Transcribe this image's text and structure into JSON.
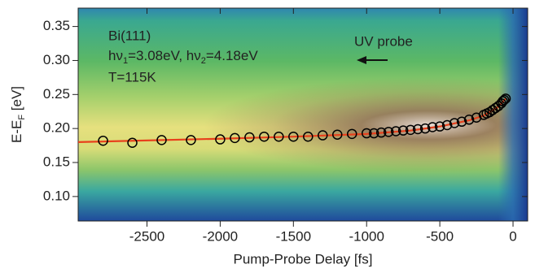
{
  "chart_data": {
    "type": "scatter",
    "xlabel": "Pump-Probe Delay [fs]",
    "ylabel": [
      "E-E",
      "F",
      " [eV]"
    ],
    "annotations": {
      "sample": "Bi(111)",
      "photons": [
        "hν",
        "1",
        "=3.08eV, hν",
        "2",
        "=4.18eV"
      ],
      "temperature": "T=115K",
      "probe": "UV probe"
    },
    "xlim": [
      -2970,
      100
    ],
    "ylim": [
      0.064,
      0.377
    ],
    "xticks": [
      -2500,
      -2000,
      -1500,
      -1000,
      -500,
      0
    ],
    "yticks": [
      {
        "value": 0.1,
        "label": "0.10"
      },
      0.15,
      {
        "value": 0.2,
        "label": "0.20"
      },
      0.25,
      {
        "value": 0.3,
        "label": "0.30"
      },
      0.35
    ],
    "series": [
      {
        "kind": "markers",
        "color": "#000000",
        "x": [
          -2800,
          -2600,
          -2400,
          -2200,
          -2000,
          -1900,
          -1800,
          -1700,
          -1600,
          -1500,
          -1400,
          -1300,
          -1200,
          -1100,
          -1000,
          -950,
          -900,
          -850,
          -800,
          -750,
          -700,
          -650,
          -600,
          -550,
          -500,
          -450,
          -400,
          -350,
          -300,
          -250,
          -200,
          -180,
          -160,
          -140,
          -120,
          -100,
          -80,
          -70,
          -60,
          -50
        ],
        "values": [
          0.182,
          0.179,
          0.183,
          0.183,
          0.184,
          0.186,
          0.187,
          0.188,
          0.188,
          0.188,
          0.188,
          0.19,
          0.191,
          0.192,
          0.193,
          0.193,
          0.194,
          0.195,
          0.196,
          0.197,
          0.198,
          0.199,
          0.2,
          0.202,
          0.203,
          0.205,
          0.208,
          0.21,
          0.213,
          0.216,
          0.22,
          0.222,
          0.224,
          0.227,
          0.23,
          0.233,
          0.237,
          0.24,
          0.242,
          0.244
        ]
      },
      {
        "kind": "line",
        "color": "#e8401c",
        "x": [
          -2970,
          -2000,
          -1500,
          -1000,
          -700,
          -500,
          -300,
          -200,
          -100,
          -50
        ],
        "values": [
          0.18,
          0.185,
          0.188,
          0.192,
          0.197,
          0.203,
          0.212,
          0.219,
          0.232,
          0.244
        ]
      }
    ]
  }
}
